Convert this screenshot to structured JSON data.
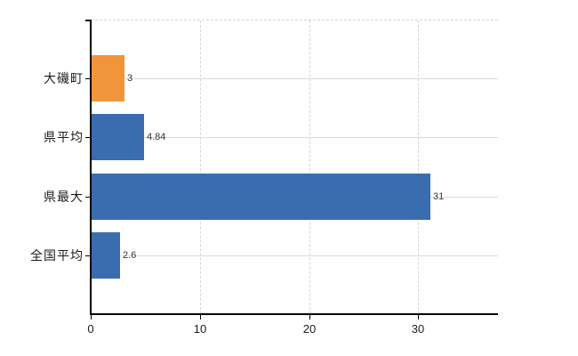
{
  "chart_data": {
    "type": "bar",
    "orientation": "horizontal",
    "title": "",
    "xlabel": "",
    "ylabel": "",
    "categories": [
      "大磯町",
      "県平均",
      "県最大",
      "全国平均"
    ],
    "values": [
      3,
      4.84,
      31,
      2.6
    ],
    "value_labels": [
      "3",
      "4.84",
      "31",
      "2.6"
    ],
    "bar_colors": [
      "#f0953c",
      "#3a6db0",
      "#3a6db0",
      "#3a6db0"
    ],
    "x_ticks": [
      0,
      10,
      20,
      30
    ],
    "x_tick_labels": [
      "0",
      "10",
      "20",
      "30"
    ],
    "xlim": [
      0,
      37.3
    ],
    "grid": {
      "vertical_lines": "dashed",
      "horizontal_category_lines": "solid",
      "top_border": "dashed"
    },
    "legend": "none",
    "colors": {
      "background": "#ffffff",
      "axis": "#000000",
      "grid_vertical": "#d6d6d6",
      "grid_horizontal": "#d8ddd6",
      "value_label_text": "#333333",
      "category_label_text": "#1c1c1c",
      "tick_label_text": "#1c1c1c",
      "bar_orange": "#f0953c",
      "bar_blue": "#3a6db0"
    }
  }
}
